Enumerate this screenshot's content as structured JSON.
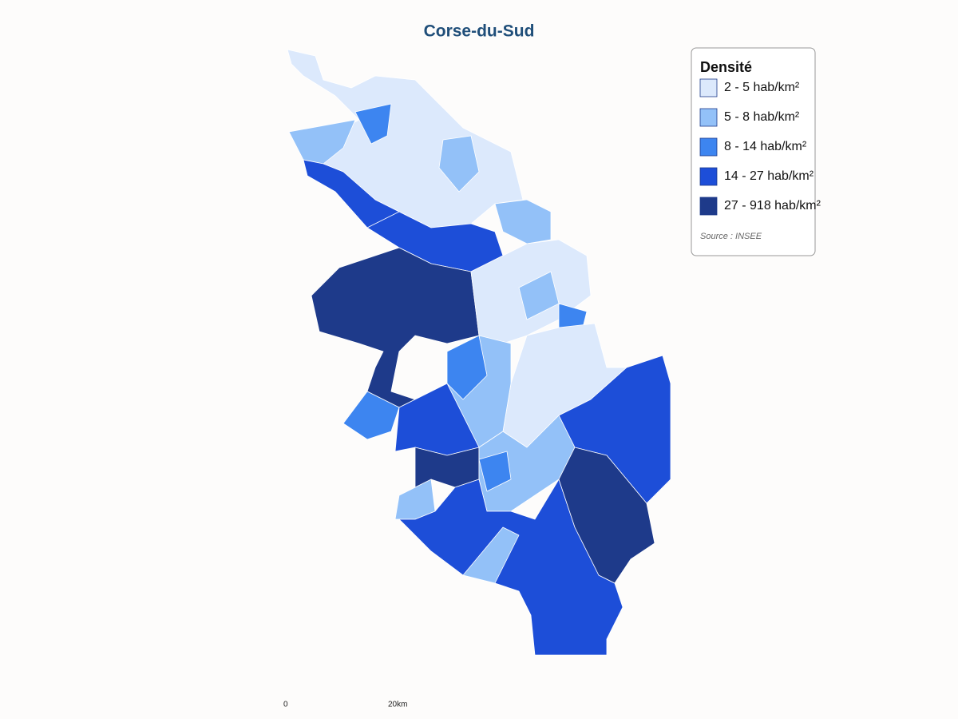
{
  "title": "Corse-du-Sud",
  "legend": {
    "title": "Densité",
    "items": [
      {
        "label": "2 - 5 hab/km²",
        "color": "#dce9fc"
      },
      {
        "label": "5 - 8 hab/km²",
        "color": "#93c1f8"
      },
      {
        "label": "8 - 14 hab/km²",
        "color": "#3d85f0"
      },
      {
        "label": "14 - 27 hab/km²",
        "color": "#1d4ed8"
      },
      {
        "label": "27 - 918 hab/km²",
        "color": "#1e3a8a"
      }
    ]
  },
  "source": "Source : INSEE",
  "scale": {
    "start": "0",
    "end": "20km"
  }
}
